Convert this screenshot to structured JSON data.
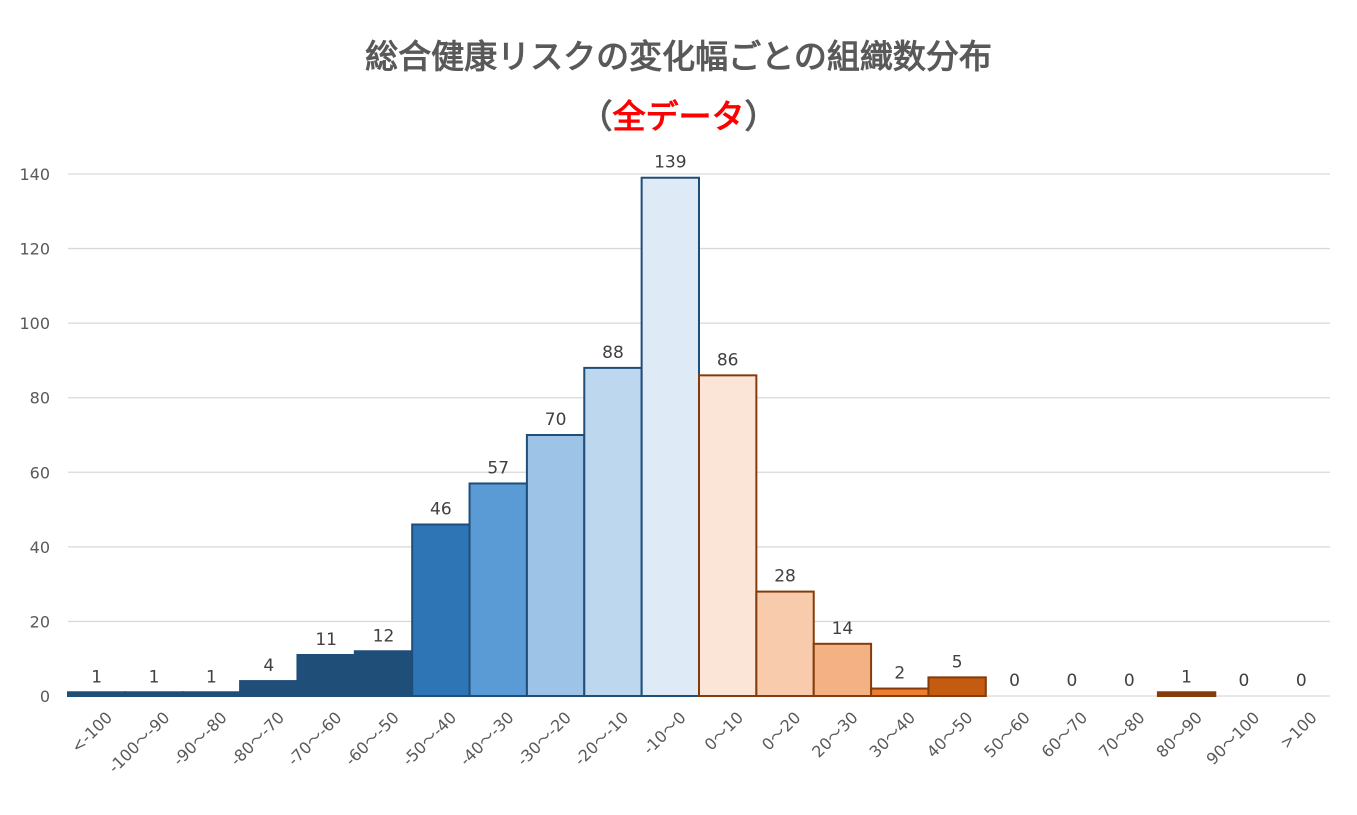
{
  "chart_data": {
    "type": "bar",
    "title": "総合健康リスクの変化幅ごとの組織数分布",
    "subtitle": {
      "open": "（",
      "highlight": "全データ",
      "close": "）",
      "highlight_color": "#ff0000"
    },
    "xlabel": "",
    "ylabel": "",
    "categories": [
      "<-100",
      "-100～-90",
      "-90～-80",
      "-80～-70",
      "-70～-60",
      "-60～-50",
      "-50～-40",
      "-40～-30",
      "-30～-20",
      "-20～-10",
      "-10～0",
      "0～10",
      "0～20",
      "20～30",
      "30～40",
      "40～50",
      "50～60",
      "60～70",
      "70～80",
      "80～90",
      "90～100",
      ">100"
    ],
    "values": [
      1,
      1,
      1,
      4,
      11,
      12,
      46,
      57,
      70,
      88,
      139,
      86,
      28,
      14,
      2,
      5,
      0,
      0,
      0,
      1,
      0,
      0
    ],
    "data_labels": [
      "1",
      "1",
      "1",
      "4",
      "11",
      "12",
      "46",
      "57",
      "70",
      "88",
      "139",
      "86",
      "28",
      "14",
      "2",
      "5",
      "0",
      "0",
      "0",
      "1",
      "0",
      "0"
    ],
    "bar_colors": [
      "#1f4e79",
      "#1f4e79",
      "#1f4e79",
      "#1f4e79",
      "#1f4e79",
      "#1f4e79",
      "#2e75b6",
      "#5b9bd5",
      "#9dc3e6",
      "#bdd7ee",
      "#deebf7",
      "#fbe5d6",
      "#f8cbad",
      "#f4b183",
      "#ed7d31",
      "#c55a11",
      "#843c0c",
      "#843c0c",
      "#843c0c",
      "#843c0c",
      "#843c0c",
      "#843c0c"
    ],
    "bar_edge_colors": [
      "#1f4e79",
      "#1f4e79",
      "#1f4e79",
      "#1f4e79",
      "#1f4e79",
      "#1f4e79",
      "#1f4e79",
      "#1f4e79",
      "#1f4e79",
      "#1f4e79",
      "#1f4e79",
      "#843c0c",
      "#843c0c",
      "#843c0c",
      "#843c0c",
      "#843c0c",
      "#843c0c",
      "#843c0c",
      "#843c0c",
      "#843c0c",
      "#843c0c",
      "#843c0c"
    ],
    "ylim": [
      0,
      140
    ],
    "yticks": [
      0,
      20,
      40,
      60,
      80,
      100,
      120,
      140
    ],
    "grid": true,
    "legend": "none",
    "colors": {
      "title": "#595959",
      "gridline": "#d9d9d9",
      "tick_text": "#595959",
      "label_text": "#404040"
    }
  }
}
